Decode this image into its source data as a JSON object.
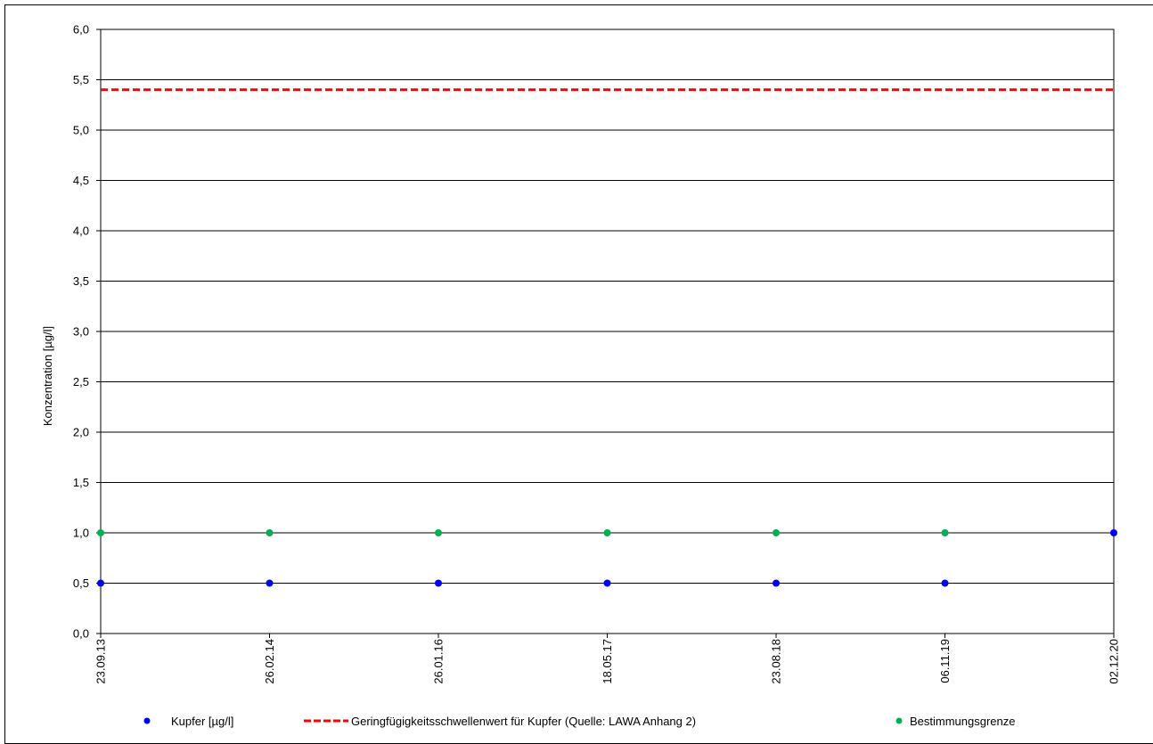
{
  "chart_data": {
    "type": "scatter",
    "title": "",
    "xlabel": "",
    "ylabel": "Konzentration [µg/l]",
    "categories": [
      "23.09.13",
      "26.02.14",
      "26.01.16",
      "18.05.17",
      "23.08.18",
      "06.11.19",
      "02.12.20"
    ],
    "ylim": [
      0,
      6
    ],
    "yticks": [
      "0,0",
      "0,5",
      "1,0",
      "1,5",
      "2,0",
      "2,5",
      "3,0",
      "3,5",
      "4,0",
      "4,5",
      "5,0",
      "5,5",
      "6,0"
    ],
    "grid": true,
    "legend_position": "bottom",
    "series": [
      {
        "name": "Kupfer [µg/l]",
        "kind": "points",
        "color": "#0000ff",
        "values": [
          0.5,
          0.5,
          0.5,
          0.5,
          0.5,
          0.5,
          1.0
        ]
      },
      {
        "name": "Geringfügigkeitsschwellenwert für Kupfer (Quelle: LAWA Anhang 2)",
        "kind": "dashed-line",
        "color": "#ff0000",
        "value": 5.4
      },
      {
        "name": "Bestimmungsgrenze",
        "kind": "points",
        "color": "#00b050",
        "values": [
          1.0,
          1.0,
          1.0,
          1.0,
          1.0,
          1.0,
          null
        ]
      }
    ]
  }
}
